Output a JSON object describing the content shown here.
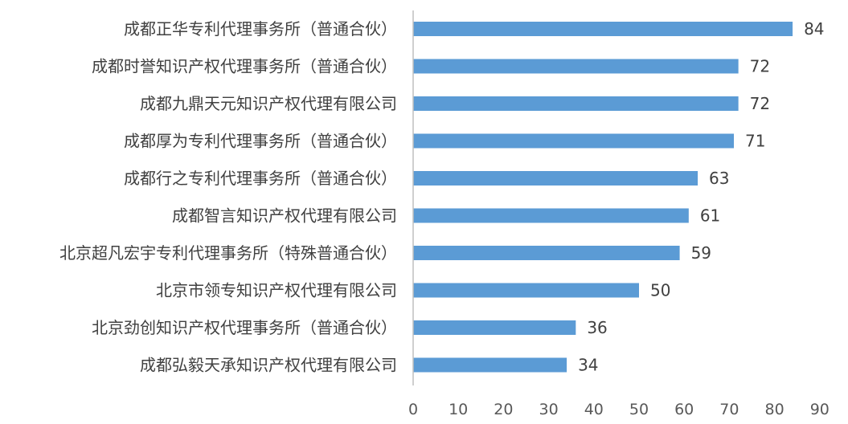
{
  "chart_data": {
    "type": "bar",
    "orientation": "horizontal",
    "categories": [
      "成都正华专利代理事务所（普通合伙）",
      "成都时誉知识产权代理事务所（普通合伙）",
      "成都九鼎天元知识产权代理有限公司",
      "成都厚为专利代理事务所（普通合伙）",
      "成都行之专利代理事务所（普通合伙）",
      "成都智言知识产权代理有限公司",
      "北京超凡宏宇专利代理事务所（特殊普通合伙）",
      "北京市领专知识产权代理有限公司",
      "北京劲创知识产权代理事务所（普通合伙）",
      "成都弘毅天承知识产权代理有限公司"
    ],
    "values": [
      84,
      72,
      72,
      71,
      63,
      61,
      59,
      50,
      36,
      34
    ],
    "xlim": [
      0,
      90
    ],
    "xticks": [
      0,
      10,
      20,
      30,
      40,
      50,
      60,
      70,
      80,
      90
    ],
    "data_labels": true,
    "grid": false,
    "bar_color": "#5B9BD5"
  }
}
